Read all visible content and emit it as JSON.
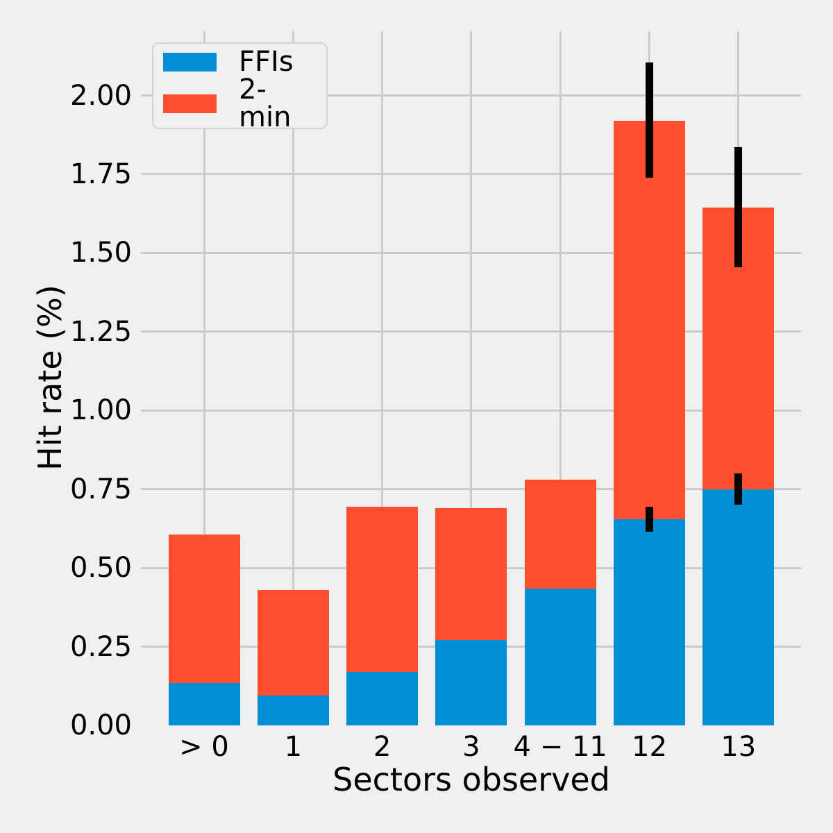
{
  "figure": {
    "background": "#f0f0f0",
    "grid_color": "#cbcbcb",
    "text_color": "#000000"
  },
  "legend": {
    "position": "upper left",
    "items": [
      {
        "label": "FFIs",
        "color": "#008fd5"
      },
      {
        "label": "2-min",
        "color": "#fc4f30"
      }
    ]
  },
  "chart_data": {
    "type": "bar",
    "stacked": true,
    "title": "",
    "xlabel": "Sectors observed",
    "ylabel": "Hit rate (%)",
    "categories": [
      "> 0",
      "1",
      "2",
      "3",
      "4 − 11",
      "12",
      "13"
    ],
    "series": [
      {
        "name": "FFIs",
        "color": "#008fd5",
        "values": [
          0.135,
          0.095,
          0.17,
          0.27,
          0.435,
          0.655,
          0.75
        ]
      },
      {
        "name": "2-min",
        "color": "#fc4f30",
        "values": [
          0.47,
          0.335,
          0.525,
          0.42,
          0.345,
          1.265,
          0.895
        ]
      }
    ],
    "stack_totals": [
      0.605,
      0.43,
      0.695,
      0.69,
      0.78,
      1.92,
      1.645
    ],
    "error_bars": {
      "color": "#000000",
      "entries": [
        {
          "category": "12",
          "at": "FFIs",
          "low": 0.615,
          "high": 0.695
        },
        {
          "category": "12",
          "at": "stack-total",
          "low": 1.74,
          "high": 2.105
        },
        {
          "category": "13",
          "at": "FFIs",
          "low": 0.7,
          "high": 0.8
        },
        {
          "category": "13",
          "at": "stack-total",
          "low": 1.455,
          "high": 1.835
        }
      ]
    },
    "ylim": [
      0,
      2.204
    ],
    "yticks": {
      "values": [
        0,
        0.25,
        0.5,
        0.75,
        1.0,
        1.25,
        1.5,
        1.75,
        2.0
      ],
      "labels": [
        "0.00",
        "0.25",
        "0.50",
        "0.75",
        "1.00",
        "1.25",
        "1.50",
        "1.75",
        "2.00"
      ]
    },
    "grid": true
  }
}
